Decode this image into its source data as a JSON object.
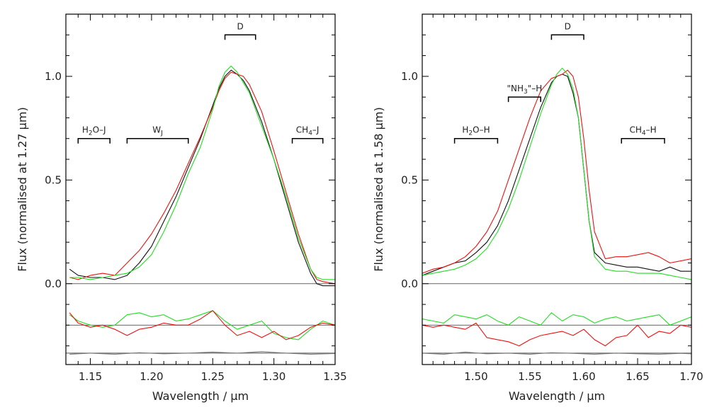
{
  "colors": {
    "black": "#111111",
    "red": "#ee1111",
    "green": "#22dd22",
    "grey": "#777777"
  },
  "chart_data": [
    {
      "type": "line",
      "xlabel": "Wavelength / μm",
      "ylabel": "Flux (normalised at 1.27 μm)",
      "xlim": [
        1.13,
        1.35
      ],
      "ylim": [
        -0.39,
        1.3
      ],
      "xticks": [
        1.15,
        1.2,
        1.25,
        1.3,
        1.35
      ],
      "xtick_labels": [
        "1.15",
        "1.20",
        "1.25",
        "1.30",
        "1.35"
      ],
      "yticks": [
        0.0,
        0.5,
        1.0
      ],
      "ytick_labels": [
        "0.0",
        "0.5",
        "1.0"
      ],
      "hlines": [
        0.0,
        -0.2,
        -0.335
      ],
      "annotations": [
        {
          "label": "D",
          "x1": 1.26,
          "x2": 1.285,
          "y": 1.2,
          "label_sub": ""
        },
        {
          "label": "H",
          "sub": "2",
          "rest": "O–J",
          "x1": 1.14,
          "x2": 1.166,
          "y": 0.7
        },
        {
          "label": "W",
          "sub": "J",
          "rest": "",
          "x1": 1.18,
          "x2": 1.23,
          "y": 0.7
        },
        {
          "label": "CH",
          "sub": "4",
          "rest": "–J",
          "x1": 1.315,
          "x2": 1.34,
          "y": 0.7
        }
      ],
      "series": [
        {
          "name": "black",
          "color": "#111111",
          "x": [
            1.133,
            1.14,
            1.15,
            1.16,
            1.17,
            1.18,
            1.19,
            1.2,
            1.21,
            1.22,
            1.23,
            1.24,
            1.25,
            1.255,
            1.26,
            1.265,
            1.27,
            1.275,
            1.28,
            1.29,
            1.3,
            1.31,
            1.32,
            1.33,
            1.335,
            1.34,
            1.35
          ],
          "y": [
            0.07,
            0.04,
            0.03,
            0.03,
            0.02,
            0.04,
            0.1,
            0.18,
            0.3,
            0.42,
            0.56,
            0.7,
            0.86,
            0.94,
            1.0,
            1.03,
            1.01,
            0.98,
            0.93,
            0.78,
            0.6,
            0.4,
            0.2,
            0.05,
            0.0,
            -0.01,
            -0.01
          ]
        },
        {
          "name": "red",
          "color": "#ee1111",
          "x": [
            1.133,
            1.14,
            1.15,
            1.16,
            1.17,
            1.18,
            1.19,
            1.2,
            1.21,
            1.22,
            1.23,
            1.24,
            1.25,
            1.255,
            1.26,
            1.265,
            1.27,
            1.275,
            1.28,
            1.29,
            1.3,
            1.31,
            1.32,
            1.33,
            1.335,
            1.34,
            1.35
          ],
          "y": [
            0.03,
            0.02,
            0.04,
            0.05,
            0.04,
            0.1,
            0.16,
            0.24,
            0.34,
            0.45,
            0.58,
            0.71,
            0.85,
            0.93,
            0.99,
            1.02,
            1.01,
            1.0,
            0.96,
            0.83,
            0.64,
            0.44,
            0.24,
            0.07,
            0.02,
            0.01,
            0.0
          ]
        },
        {
          "name": "green",
          "color": "#22dd22",
          "x": [
            1.133,
            1.14,
            1.15,
            1.16,
            1.17,
            1.18,
            1.19,
            1.2,
            1.21,
            1.22,
            1.23,
            1.24,
            1.25,
            1.255,
            1.26,
            1.265,
            1.27,
            1.275,
            1.28,
            1.29,
            1.3,
            1.31,
            1.32,
            1.33,
            1.335,
            1.34,
            1.35
          ],
          "y": [
            0.03,
            0.03,
            0.02,
            0.03,
            0.04,
            0.05,
            0.08,
            0.14,
            0.25,
            0.38,
            0.53,
            0.66,
            0.84,
            0.95,
            1.02,
            1.05,
            1.02,
            0.97,
            0.92,
            0.76,
            0.6,
            0.42,
            0.22,
            0.07,
            0.03,
            0.02,
            0.02
          ]
        },
        {
          "name": "green residual",
          "color": "#22dd22",
          "x": [
            1.133,
            1.14,
            1.15,
            1.16,
            1.17,
            1.18,
            1.19,
            1.2,
            1.21,
            1.22,
            1.23,
            1.24,
            1.25,
            1.26,
            1.27,
            1.28,
            1.29,
            1.3,
            1.31,
            1.32,
            1.33,
            1.34,
            1.35
          ],
          "y": [
            -0.15,
            -0.18,
            -0.2,
            -0.21,
            -0.2,
            -0.15,
            -0.14,
            -0.16,
            -0.15,
            -0.18,
            -0.17,
            -0.15,
            -0.13,
            -0.18,
            -0.22,
            -0.2,
            -0.18,
            -0.24,
            -0.26,
            -0.27,
            -0.22,
            -0.18,
            -0.2
          ]
        },
        {
          "name": "red residual",
          "color": "#ee1111",
          "x": [
            1.133,
            1.14,
            1.15,
            1.16,
            1.17,
            1.18,
            1.19,
            1.2,
            1.21,
            1.22,
            1.23,
            1.24,
            1.25,
            1.26,
            1.27,
            1.28,
            1.29,
            1.3,
            1.31,
            1.32,
            1.33,
            1.34,
            1.35
          ],
          "y": [
            -0.14,
            -0.19,
            -0.21,
            -0.2,
            -0.22,
            -0.25,
            -0.22,
            -0.21,
            -0.19,
            -0.2,
            -0.2,
            -0.17,
            -0.13,
            -0.2,
            -0.25,
            -0.23,
            -0.26,
            -0.23,
            -0.27,
            -0.25,
            -0.21,
            -0.19,
            -0.2
          ]
        },
        {
          "name": "noise",
          "color": "#777777",
          "x": [
            1.133,
            1.15,
            1.17,
            1.19,
            1.21,
            1.23,
            1.25,
            1.27,
            1.29,
            1.31,
            1.33,
            1.35
          ],
          "y": [
            -0.34,
            -0.335,
            -0.34,
            -0.333,
            -0.338,
            -0.335,
            -0.33,
            -0.335,
            -0.328,
            -0.335,
            -0.34,
            -0.337
          ]
        }
      ]
    },
    {
      "type": "line",
      "xlabel": "Wavelength / μm",
      "ylabel": "Flux (normalised at 1.58 μm)",
      "xlim": [
        1.45,
        1.7
      ],
      "ylim": [
        -0.39,
        1.3
      ],
      "xticks": [
        1.5,
        1.55,
        1.6,
        1.65,
        1.7
      ],
      "xtick_labels": [
        "1.50",
        "1.55",
        "1.60",
        "1.65",
        "1.70"
      ],
      "yticks": [
        0.0,
        0.5,
        1.0
      ],
      "ytick_labels": [
        "0.0",
        "0.5",
        "1.0"
      ],
      "hlines": [
        0.0,
        -0.2,
        -0.335
      ],
      "annotations": [
        {
          "label": "D",
          "x1": 1.57,
          "x2": 1.6,
          "y": 1.2,
          "label_sub": ""
        },
        {
          "label": "\"NH",
          "sub": "3",
          "rest": "\"–H",
          "x1": 1.53,
          "x2": 1.56,
          "y": 0.9
        },
        {
          "label": "H",
          "sub": "2",
          "rest": "O–H",
          "x1": 1.48,
          "x2": 1.52,
          "y": 0.7
        },
        {
          "label": "CH",
          "sub": "4",
          "rest": "–H",
          "x1": 1.635,
          "x2": 1.675,
          "y": 0.7
        }
      ],
      "series": [
        {
          "name": "black",
          "color": "#111111",
          "x": [
            1.45,
            1.46,
            1.47,
            1.48,
            1.49,
            1.5,
            1.51,
            1.52,
            1.53,
            1.54,
            1.55,
            1.56,
            1.57,
            1.575,
            1.58,
            1.585,
            1.59,
            1.595,
            1.6,
            1.605,
            1.61,
            1.62,
            1.63,
            1.64,
            1.65,
            1.66,
            1.67,
            1.68,
            1.69,
            1.7
          ],
          "y": [
            0.04,
            0.06,
            0.08,
            0.1,
            0.11,
            0.15,
            0.2,
            0.28,
            0.4,
            0.55,
            0.7,
            0.85,
            0.97,
            1.0,
            1.01,
            1.0,
            0.92,
            0.8,
            0.55,
            0.3,
            0.15,
            0.1,
            0.09,
            0.08,
            0.08,
            0.07,
            0.06,
            0.08,
            0.06,
            0.06
          ]
        },
        {
          "name": "red",
          "color": "#ee1111",
          "x": [
            1.45,
            1.46,
            1.47,
            1.48,
            1.49,
            1.5,
            1.51,
            1.52,
            1.53,
            1.54,
            1.55,
            1.56,
            1.57,
            1.575,
            1.58,
            1.585,
            1.59,
            1.595,
            1.6,
            1.605,
            1.61,
            1.62,
            1.63,
            1.64,
            1.65,
            1.66,
            1.67,
            1.68,
            1.69,
            1.7
          ],
          "y": [
            0.05,
            0.07,
            0.08,
            0.1,
            0.13,
            0.18,
            0.25,
            0.35,
            0.5,
            0.65,
            0.8,
            0.93,
            0.99,
            1.0,
            1.01,
            1.03,
            1.0,
            0.9,
            0.7,
            0.45,
            0.25,
            0.12,
            0.13,
            0.13,
            0.14,
            0.15,
            0.13,
            0.1,
            0.11,
            0.12
          ]
        },
        {
          "name": "green",
          "color": "#22dd22",
          "x": [
            1.45,
            1.46,
            1.47,
            1.48,
            1.49,
            1.5,
            1.51,
            1.52,
            1.53,
            1.54,
            1.55,
            1.56,
            1.57,
            1.575,
            1.58,
            1.585,
            1.59,
            1.595,
            1.6,
            1.605,
            1.61,
            1.62,
            1.63,
            1.64,
            1.65,
            1.66,
            1.67,
            1.68,
            1.69,
            1.7
          ],
          "y": [
            0.04,
            0.05,
            0.06,
            0.07,
            0.09,
            0.12,
            0.17,
            0.25,
            0.36,
            0.5,
            0.66,
            0.82,
            0.96,
            1.01,
            1.04,
            1.01,
            0.94,
            0.8,
            0.55,
            0.3,
            0.13,
            0.07,
            0.06,
            0.06,
            0.05,
            0.05,
            0.05,
            0.04,
            0.03,
            0.02
          ]
        },
        {
          "name": "green residual",
          "color": "#22dd22",
          "x": [
            1.45,
            1.46,
            1.47,
            1.48,
            1.49,
            1.5,
            1.51,
            1.52,
            1.53,
            1.54,
            1.55,
            1.56,
            1.57,
            1.58,
            1.59,
            1.6,
            1.61,
            1.62,
            1.63,
            1.64,
            1.65,
            1.66,
            1.67,
            1.68,
            1.69,
            1.7
          ],
          "y": [
            -0.17,
            -0.18,
            -0.19,
            -0.15,
            -0.16,
            -0.17,
            -0.15,
            -0.18,
            -0.2,
            -0.16,
            -0.18,
            -0.2,
            -0.14,
            -0.18,
            -0.15,
            -0.16,
            -0.19,
            -0.17,
            -0.16,
            -0.18,
            -0.17,
            -0.16,
            -0.15,
            -0.2,
            -0.18,
            -0.16
          ]
        },
        {
          "name": "red residual",
          "color": "#ee1111",
          "x": [
            1.45,
            1.46,
            1.47,
            1.48,
            1.49,
            1.5,
            1.51,
            1.52,
            1.53,
            1.54,
            1.55,
            1.56,
            1.57,
            1.58,
            1.59,
            1.6,
            1.61,
            1.62,
            1.63,
            1.64,
            1.65,
            1.66,
            1.67,
            1.68,
            1.69,
            1.7
          ],
          "y": [
            -0.2,
            -0.21,
            -0.2,
            -0.21,
            -0.22,
            -0.19,
            -0.26,
            -0.27,
            -0.28,
            -0.3,
            -0.27,
            -0.25,
            -0.24,
            -0.23,
            -0.25,
            -0.22,
            -0.27,
            -0.3,
            -0.26,
            -0.25,
            -0.2,
            -0.26,
            -0.23,
            -0.24,
            -0.2,
            -0.21
          ]
        },
        {
          "name": "noise",
          "color": "#777777",
          "x": [
            1.45,
            1.47,
            1.49,
            1.51,
            1.53,
            1.55,
            1.57,
            1.59,
            1.61,
            1.63,
            1.65,
            1.67,
            1.69,
            1.7
          ],
          "y": [
            -0.335,
            -0.34,
            -0.33,
            -0.338,
            -0.335,
            -0.34,
            -0.333,
            -0.336,
            -0.34,
            -0.335,
            -0.338,
            -0.34,
            -0.336,
            -0.338
          ]
        }
      ]
    }
  ]
}
